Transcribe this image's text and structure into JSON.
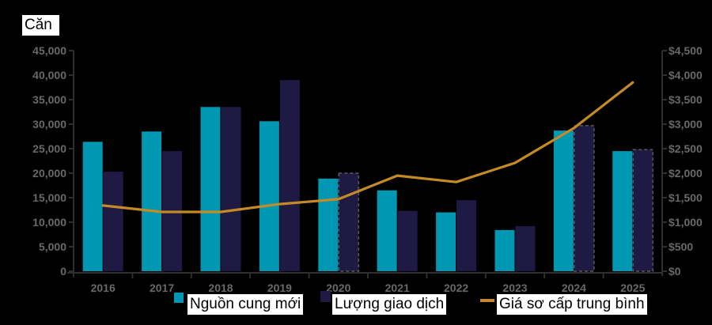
{
  "unit_label": "Căn",
  "legend": {
    "supply": "Nguồn cung mới",
    "transactions": "Lượng giao dịch",
    "price": "Giá sơ cấp trung bình"
  },
  "colors": {
    "supply": "#0097b2",
    "transactions": "#1f1a43",
    "price": "#c48a25",
    "axis_text": "#6e6e6e",
    "background": "#000000"
  },
  "chart_data": {
    "type": "bar+line",
    "title": "",
    "ylabel_left": "Căn",
    "ylabel_right": "",
    "categories": [
      "2016",
      "2017",
      "2018",
      "2019",
      "2020",
      "2021",
      "2022",
      "2023",
      "2024",
      "2025"
    ],
    "series": [
      {
        "name": "Nguồn cung mới",
        "type": "bar",
        "axis": "left",
        "values": [
          26400,
          28500,
          33500,
          30600,
          18900,
          16500,
          12000,
          8400,
          28700,
          24500
        ]
      },
      {
        "name": "Lượng giao dịch",
        "type": "bar",
        "axis": "left",
        "values": [
          20300,
          24500,
          33500,
          39000,
          20000,
          12300,
          14500,
          9200,
          29700,
          24800
        ],
        "dashed_outline_categories": [
          "2020",
          "2024",
          "2025"
        ]
      },
      {
        "name": "Giá sơ cấp trung bình",
        "type": "line",
        "axis": "right",
        "values": [
          1340,
          1210,
          1210,
          1370,
          1470,
          1950,
          1820,
          2210,
          2920,
          3850
        ]
      }
    ],
    "left_axis": {
      "ylim": [
        0,
        45000
      ],
      "ticks": [
        "0",
        "5,000",
        "10,000",
        "15,000",
        "20,000",
        "25,000",
        "30,000",
        "35,000",
        "40,000",
        "45,000"
      ]
    },
    "right_axis": {
      "ylim": [
        0,
        4500
      ],
      "ticks": [
        "$0",
        "$500",
        "$1,000",
        "$1,500",
        "$2,000",
        "$2,500",
        "$3,000",
        "$3,500",
        "$4,000",
        "$4,500"
      ]
    },
    "grid": false,
    "legend_position": "bottom"
  }
}
